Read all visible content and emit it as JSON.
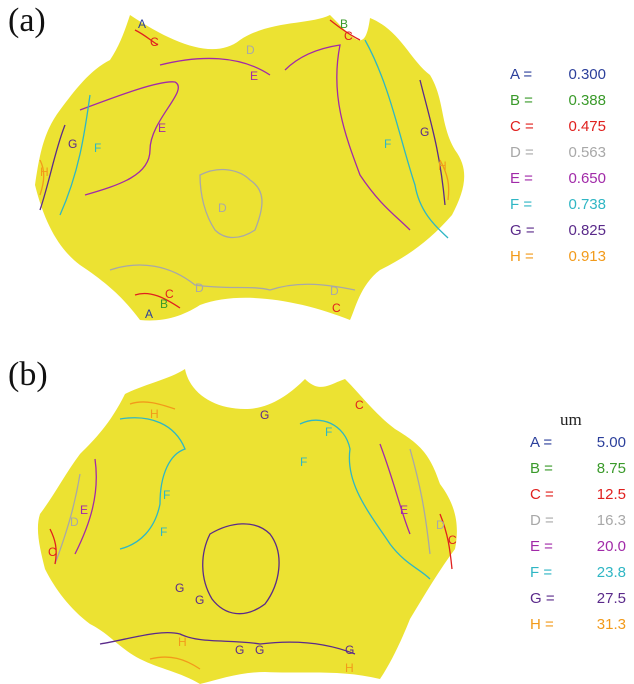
{
  "panels": [
    {
      "label": "(a)",
      "unit": "",
      "legend": [
        {
          "key": "A =",
          "value": "0.300",
          "color": "#2b3f9b"
        },
        {
          "key": "B =",
          "value": "0.388",
          "color": "#3a9a2a"
        },
        {
          "key": "C =",
          "value": "0.475",
          "color": "#e0201e"
        },
        {
          "key": "D =",
          "value": "0.563",
          "color": "#a8a8a8"
        },
        {
          "key": "E =",
          "value": "0.650",
          "color": "#a12aa8"
        },
        {
          "key": "F =",
          "value": "0.738",
          "color": "#2fb6c4"
        },
        {
          "key": "G =",
          "value": "0.825",
          "color": "#5a2a8a"
        },
        {
          "key": "H =",
          "value": "0.913",
          "color": "#f29a1a"
        }
      ]
    },
    {
      "label": "(b)",
      "unit": "um",
      "legend": [
        {
          "key": "A =",
          "value": "5.00",
          "color": "#2b3f9b"
        },
        {
          "key": "B =",
          "value": "8.75",
          "color": "#3a9a2a"
        },
        {
          "key": "C =",
          "value": "12.5",
          "color": "#e0201e"
        },
        {
          "key": "D =",
          "value": "16.3",
          "color": "#a8a8a8"
        },
        {
          "key": "E =",
          "value": "20.0",
          "color": "#a12aa8"
        },
        {
          "key": "F =",
          "value": "23.8",
          "color": "#2fb6c4"
        },
        {
          "key": "G =",
          "value": "27.5",
          "color": "#5a2a8a"
        },
        {
          "key": "H =",
          "value": "31.3",
          "color": "#f29a1a"
        }
      ]
    }
  ],
  "fill_color": "#ece232"
}
